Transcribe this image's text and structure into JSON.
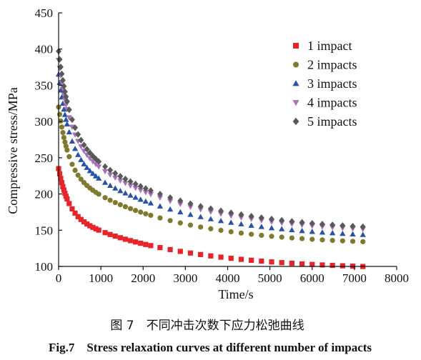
{
  "chart_data": {
    "type": "scatter",
    "xlabel": "Time/s",
    "ylabel": "Compressive stress/MPa",
    "xlim": [
      0,
      8000
    ],
    "ylim": [
      100,
      450
    ],
    "xticks": [
      0,
      1000,
      2000,
      3000,
      4000,
      5000,
      6000,
      7000,
      8000
    ],
    "yticks": [
      100,
      150,
      200,
      250,
      300,
      350,
      400,
      450
    ],
    "legend_position": "top-right",
    "grid": false,
    "series": [
      {
        "name": "1 impact",
        "color": "#e8242b",
        "marker": "square",
        "y0": 235,
        "a": 62,
        "tau1": 230,
        "b": 78,
        "tau2": 2600
      },
      {
        "name": "2 impacts",
        "color": "#7f7a2e",
        "marker": "circle",
        "y0": 320,
        "a": 88,
        "tau1": 230,
        "b": 103,
        "tau2": 2400
      },
      {
        "name": "3 impacts",
        "color": "#2752a8",
        "marker": "triangle-up",
        "y0": 365,
        "a": 108,
        "tau1": 250,
        "b": 120,
        "tau2": 2500
      },
      {
        "name": "4 impacts",
        "color": "#a872b8",
        "marker": "triangle-down",
        "y0": 385,
        "a": 108,
        "tau1": 260,
        "b": 133,
        "tau2": 2500
      },
      {
        "name": "5 impacts",
        "color": "#595959",
        "marker": "diamond",
        "y0": 397,
        "a": 112,
        "tau1": 270,
        "b": 138,
        "tau2": 2500
      }
    ]
  },
  "caption": {
    "cn": "图 7　不同冲击次数下应力松弛曲线",
    "en": "Fig.7　Stress relaxation curves at different number of impacts"
  }
}
